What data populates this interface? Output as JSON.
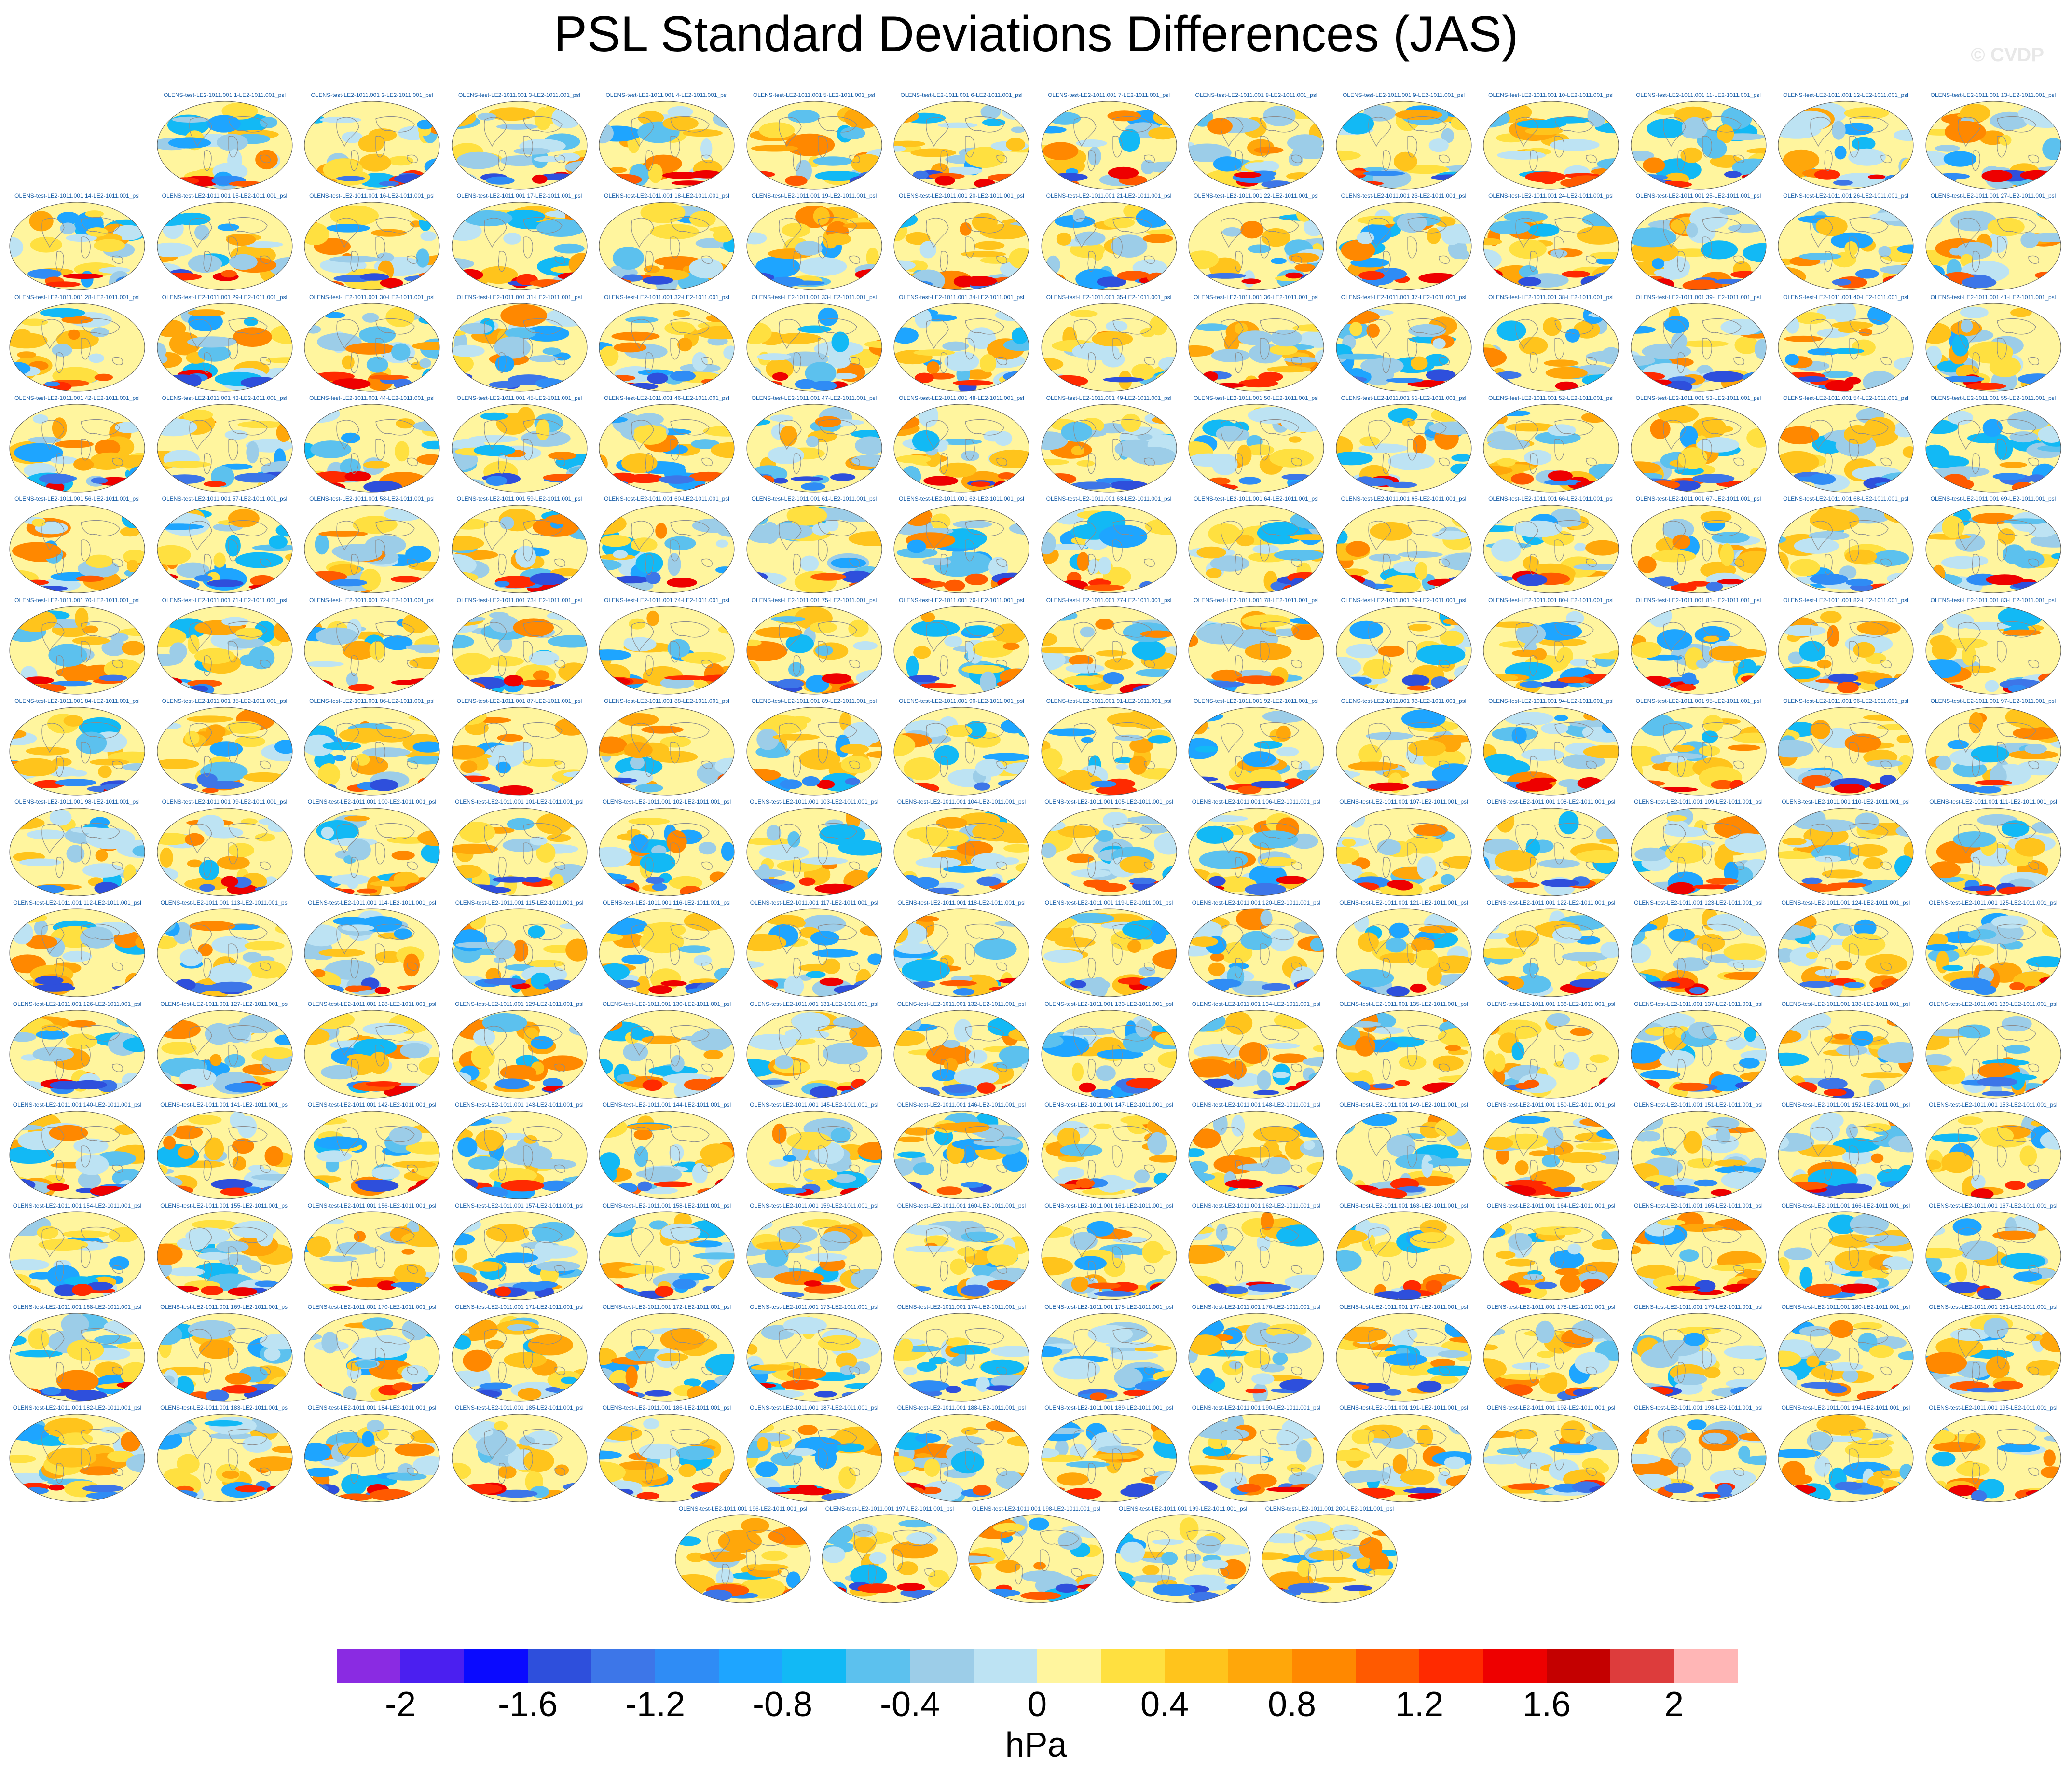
{
  "title": "PSL Standard Deviations Differences (JAS)",
  "watermark": "© CVDP",
  "panel_label_prefix": "OLENS-test-LE2-1011.001",
  "panel_label_middle": "-LE2-1011.001_psl",
  "panel_count": 200,
  "colorbar": {
    "colors": [
      "#8a2be2",
      "#4b1ff0",
      "#0a0aff",
      "#2e4fdc",
      "#3d76e8",
      "#2f8cf5",
      "#1ea5ff",
      "#12b9f5",
      "#5cc1ee",
      "#9ccde8",
      "#bde3f3",
      "#fff59e",
      "#ffe040",
      "#ffc41c",
      "#ffa70a",
      "#ff8800",
      "#ff5a00",
      "#ff2a00",
      "#ee0000",
      "#c40000",
      "#dd3c3c",
      "#ffb6b6"
    ],
    "tick_labels": [
      "-2",
      "-1.6",
      "-1.2",
      "-0.8",
      "-0.4",
      "0",
      "0.4",
      "0.8",
      "1.2",
      "1.6",
      "2"
    ],
    "units": "hPa"
  }
}
